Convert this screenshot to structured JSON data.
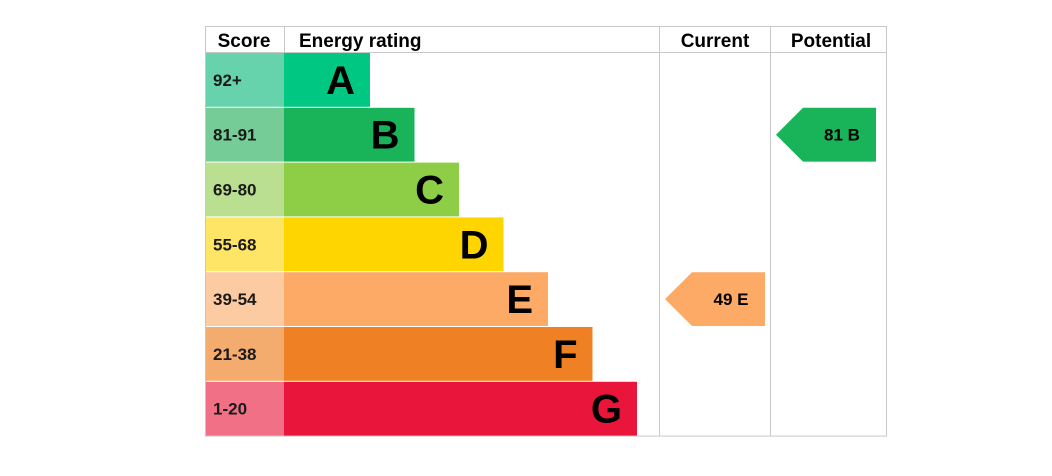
{
  "chart_data": {
    "type": "bar",
    "headers": {
      "score": "Score",
      "energy_rating": "Energy rating",
      "current": "Current",
      "potential": "Potential"
    },
    "bands": [
      {
        "letter": "A",
        "range": "92+",
        "min": 92,
        "max": 100,
        "color": "#00c781",
        "score_bg": "#66d3ad"
      },
      {
        "letter": "B",
        "range": "81-91",
        "min": 81,
        "max": 91,
        "color": "#19b459",
        "score_bg": "#75cc96"
      },
      {
        "letter": "C",
        "range": "69-80",
        "min": 69,
        "max": 80,
        "color": "#8dce46",
        "score_bg": "#badf91"
      },
      {
        "letter": "D",
        "range": "55-68",
        "min": 55,
        "max": 68,
        "color": "#ffd500",
        "score_bg": "#ffe566"
      },
      {
        "letter": "E",
        "range": "39-54",
        "min": 39,
        "max": 54,
        "color": "#fcaa65",
        "score_bg": "#fdcba2"
      },
      {
        "letter": "F",
        "range": "21-38",
        "min": 21,
        "max": 38,
        "color": "#ef8023",
        "score_bg": "#f4ab6e"
      },
      {
        "letter": "G",
        "range": "1-20",
        "min": 1,
        "max": 20,
        "color": "#e9153b",
        "score_bg": "#f17086"
      }
    ],
    "current": {
      "value": 49,
      "band": "E",
      "label": "49  E",
      "color": "#fcaa65"
    },
    "potential": {
      "value": 81,
      "band": "B",
      "label": "81  B",
      "color": "#19b459"
    }
  }
}
